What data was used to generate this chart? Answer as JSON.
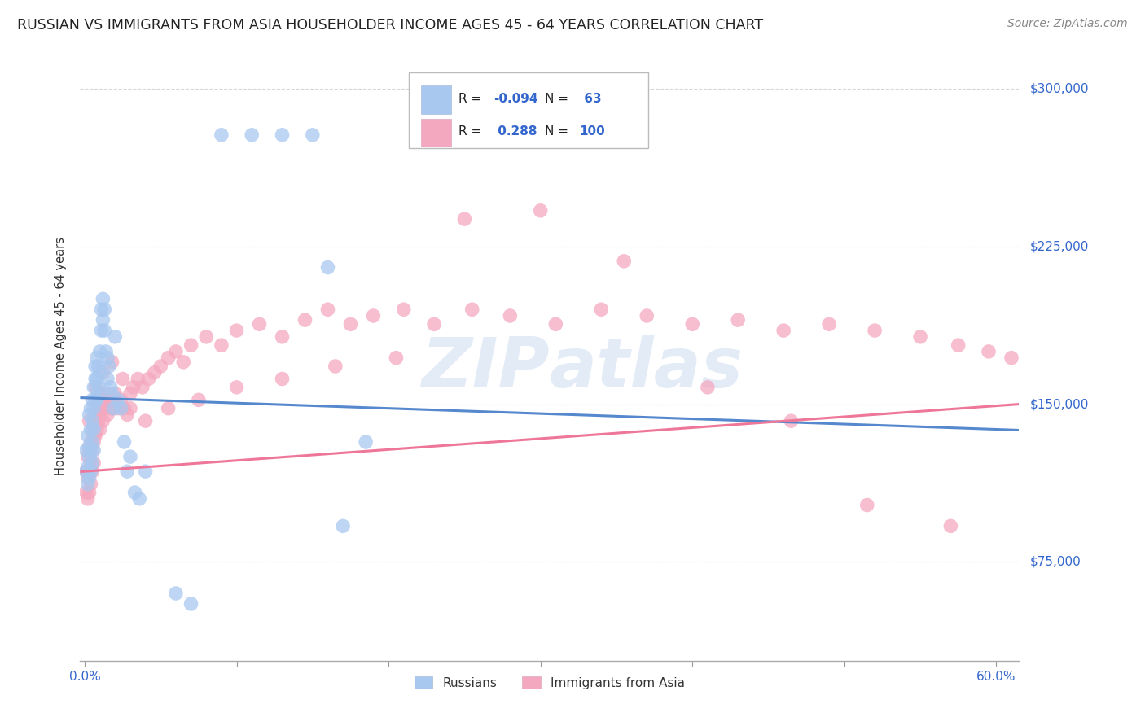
{
  "title": "RUSSIAN VS IMMIGRANTS FROM ASIA HOUSEHOLDER INCOME AGES 45 - 64 YEARS CORRELATION CHART",
  "source": "Source: ZipAtlas.com",
  "ylabel": "Householder Income Ages 45 - 64 years",
  "ytick_labels": [
    "$75,000",
    "$150,000",
    "$225,000",
    "$300,000"
  ],
  "ytick_values": [
    75000,
    150000,
    225000,
    300000
  ],
  "ymin": 28000,
  "ymax": 318000,
  "xmin": -0.003,
  "xmax": 0.615,
  "color_russian": "#A8C8F0",
  "color_asian": "#F4A8C0",
  "color_russian_line": "#5588CC",
  "color_asian_line": "#EE7799",
  "color_axis_label": "#3366CC",
  "background_color": "#FFFFFF",
  "grid_color": "#CCCCCC",
  "russians_x": [
    0.001,
    0.001,
    0.002,
    0.002,
    0.002,
    0.003,
    0.003,
    0.003,
    0.003,
    0.004,
    0.004,
    0.004,
    0.004,
    0.005,
    0.005,
    0.005,
    0.005,
    0.006,
    0.006,
    0.006,
    0.006,
    0.007,
    0.007,
    0.007,
    0.008,
    0.008,
    0.008,
    0.009,
    0.009,
    0.01,
    0.01,
    0.01,
    0.011,
    0.011,
    0.012,
    0.012,
    0.013,
    0.013,
    0.014,
    0.015,
    0.015,
    0.016,
    0.017,
    0.018,
    0.019,
    0.02,
    0.022,
    0.024,
    0.026,
    0.028,
    0.03,
    0.033,
    0.036,
    0.04,
    0.06,
    0.07,
    0.09,
    0.11,
    0.13,
    0.15,
    0.16,
    0.17,
    0.185
  ],
  "russians_y": [
    128000,
    118000,
    135000,
    120000,
    112000,
    130000,
    145000,
    125000,
    115000,
    148000,
    138000,
    128000,
    118000,
    152000,
    142000,
    132000,
    122000,
    158000,
    148000,
    138000,
    128000,
    162000,
    152000,
    168000,
    172000,
    162000,
    152000,
    168000,
    158000,
    175000,
    165000,
    155000,
    185000,
    195000,
    200000,
    190000,
    195000,
    185000,
    175000,
    172000,
    162000,
    168000,
    158000,
    155000,
    148000,
    182000,
    152000,
    148000,
    132000,
    118000,
    125000,
    108000,
    105000,
    118000,
    60000,
    55000,
    278000,
    278000,
    278000,
    278000,
    215000,
    92000,
    132000
  ],
  "asians_x": [
    0.001,
    0.001,
    0.002,
    0.002,
    0.002,
    0.003,
    0.003,
    0.003,
    0.004,
    0.004,
    0.004,
    0.005,
    0.005,
    0.005,
    0.006,
    0.006,
    0.006,
    0.007,
    0.007,
    0.008,
    0.008,
    0.009,
    0.009,
    0.01,
    0.01,
    0.011,
    0.012,
    0.012,
    0.013,
    0.014,
    0.015,
    0.016,
    0.017,
    0.018,
    0.019,
    0.02,
    0.022,
    0.024,
    0.026,
    0.028,
    0.03,
    0.032,
    0.035,
    0.038,
    0.042,
    0.046,
    0.05,
    0.055,
    0.06,
    0.065,
    0.07,
    0.08,
    0.09,
    0.1,
    0.115,
    0.13,
    0.145,
    0.16,
    0.175,
    0.19,
    0.21,
    0.23,
    0.255,
    0.28,
    0.31,
    0.34,
    0.37,
    0.4,
    0.43,
    0.46,
    0.49,
    0.52,
    0.55,
    0.575,
    0.595,
    0.61,
    0.003,
    0.006,
    0.01,
    0.015,
    0.02,
    0.03,
    0.04,
    0.055,
    0.075,
    0.1,
    0.13,
    0.165,
    0.205,
    0.25,
    0.3,
    0.355,
    0.41,
    0.465,
    0.515,
    0.57,
    0.007,
    0.012,
    0.018,
    0.025
  ],
  "asians_y": [
    118000,
    108000,
    125000,
    115000,
    105000,
    128000,
    118000,
    108000,
    132000,
    122000,
    112000,
    138000,
    128000,
    118000,
    142000,
    132000,
    122000,
    145000,
    135000,
    148000,
    138000,
    152000,
    142000,
    155000,
    145000,
    148000,
    152000,
    142000,
    148000,
    155000,
    150000,
    152000,
    148000,
    150000,
    148000,
    155000,
    148000,
    152000,
    148000,
    145000,
    155000,
    158000,
    162000,
    158000,
    162000,
    165000,
    168000,
    172000,
    175000,
    170000,
    178000,
    182000,
    178000,
    185000,
    188000,
    182000,
    190000,
    195000,
    188000,
    192000,
    195000,
    188000,
    195000,
    192000,
    188000,
    195000,
    192000,
    188000,
    190000,
    185000,
    188000,
    185000,
    182000,
    178000,
    175000,
    172000,
    142000,
    135000,
    138000,
    145000,
    152000,
    148000,
    142000,
    148000,
    152000,
    158000,
    162000,
    168000,
    172000,
    238000,
    242000,
    218000,
    158000,
    142000,
    102000,
    92000,
    158000,
    165000,
    170000,
    162000
  ]
}
